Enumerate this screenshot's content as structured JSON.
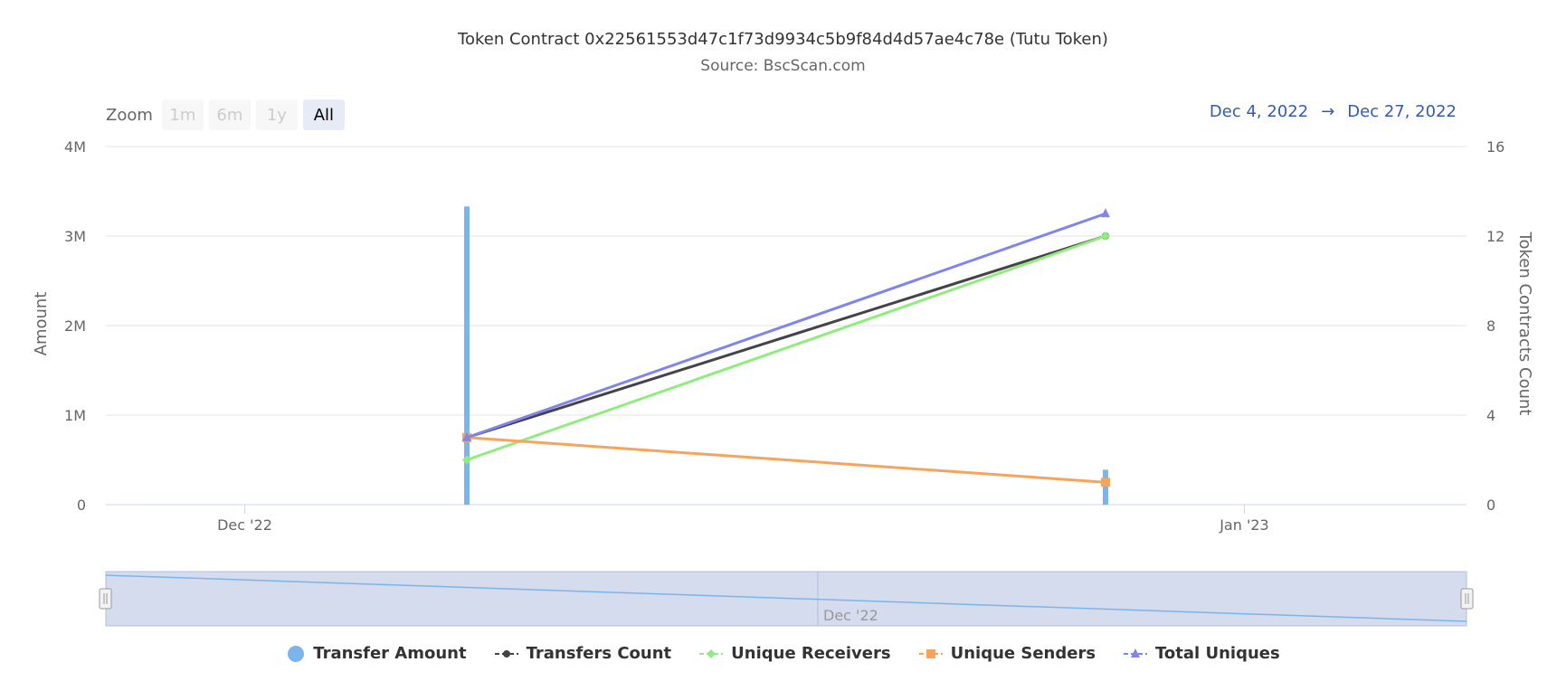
{
  "title": "Token Contract 0x22561553d47c1f73d9934c5b9f84d4d57ae4c78e (Tutu Token)",
  "subtitle": "Source: BscScan.com",
  "range_selector": {
    "zoom_label": "Zoom",
    "buttons": [
      "1m",
      "6m",
      "1y",
      "All"
    ],
    "selected": "All",
    "from": "Dec 4, 2022",
    "arrow": "→",
    "to": "Dec 27, 2022"
  },
  "navigator": {
    "tick_label": "Dec '22"
  },
  "chart_data": {
    "type": "line",
    "title": "Token Contract 0x22561553d47c1f73d9934c5b9f84d4d57ae4c78e (Tutu Token)",
    "subtitle": "Source: BscScan.com",
    "x_axis": {
      "type": "date",
      "range": [
        "2022-11-21",
        "2023-01-09"
      ],
      "ticks": [
        {
          "date": "2022-11-26",
          "label": "Dec '22"
        },
        {
          "date": "2023-01-01",
          "label": "Jan '23"
        }
      ]
    },
    "y_axis_left": {
      "label": "Amount",
      "range": [
        0,
        4000000
      ],
      "ticks": [
        {
          "value": 0,
          "label": "0"
        },
        {
          "value": 1000000,
          "label": "1M"
        },
        {
          "value": 2000000,
          "label": "2M"
        },
        {
          "value": 3000000,
          "label": "3M"
        },
        {
          "value": 4000000,
          "label": "4M"
        }
      ]
    },
    "y_axis_right": {
      "label": "Token Contracts Count",
      "range": [
        0,
        16
      ],
      "ticks": [
        {
          "value": 0,
          "label": "0"
        },
        {
          "value": 4,
          "label": "4"
        },
        {
          "value": 8,
          "label": "8"
        },
        {
          "value": 12,
          "label": "12"
        },
        {
          "value": 16,
          "label": "16"
        }
      ]
    },
    "grid": true,
    "legend_position": "bottom",
    "series": [
      {
        "name": "Transfer Amount",
        "kind": "column",
        "axis": "left",
        "color": "#7cb5ec",
        "symbol": "circle",
        "points": [
          {
            "x": "2022-12-04",
            "y": 3330000
          },
          {
            "x": "2022-12-27",
            "y": 390000
          }
        ]
      },
      {
        "name": "Transfers Count",
        "kind": "line",
        "axis": "right",
        "color": "#434348",
        "symbol": "circle",
        "points": [
          {
            "x": "2022-12-04",
            "y": 3
          },
          {
            "x": "2022-12-27",
            "y": 12
          }
        ]
      },
      {
        "name": "Unique Receivers",
        "kind": "line",
        "axis": "right",
        "color": "#90ed7d",
        "symbol": "diamond",
        "points": [
          {
            "x": "2022-12-04",
            "y": 2
          },
          {
            "x": "2022-12-27",
            "y": 12
          }
        ]
      },
      {
        "name": "Unique Senders",
        "kind": "line",
        "axis": "right",
        "color": "#f7a35c",
        "symbol": "square",
        "points": [
          {
            "x": "2022-12-04",
            "y": 3
          },
          {
            "x": "2022-12-27",
            "y": 1
          }
        ]
      },
      {
        "name": "Total Uniques",
        "kind": "line",
        "axis": "right",
        "color": "#8085e9",
        "symbol": "triangle",
        "points": [
          {
            "x": "2022-12-04",
            "y": 3
          },
          {
            "x": "2022-12-27",
            "y": 13
          }
        ]
      }
    ]
  }
}
